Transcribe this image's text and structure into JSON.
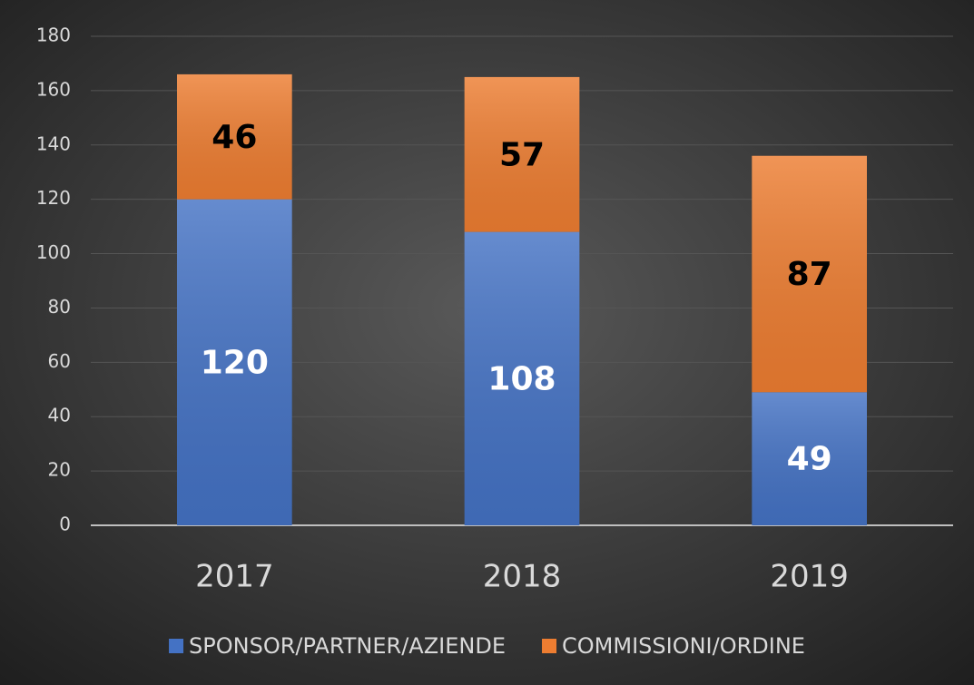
{
  "chart_data": {
    "type": "stacked_bar",
    "categories": [
      "2017",
      "2018",
      "2019"
    ],
    "series": [
      {
        "name": "SPONSOR/PARTNER/AZIENDE",
        "color": "#4472c4",
        "label_color": "#ffffff",
        "values": [
          120,
          108,
          49
        ]
      },
      {
        "name": "COMMISSIONI/ORDINE",
        "color": "#ed7d31",
        "label_color": "#000000",
        "values": [
          46,
          57,
          87
        ]
      }
    ],
    "ylim": [
      0,
      180
    ],
    "yticks": [
      0,
      20,
      40,
      60,
      80,
      100,
      120,
      140,
      160,
      180
    ],
    "grid": true,
    "legend": "bottom"
  }
}
